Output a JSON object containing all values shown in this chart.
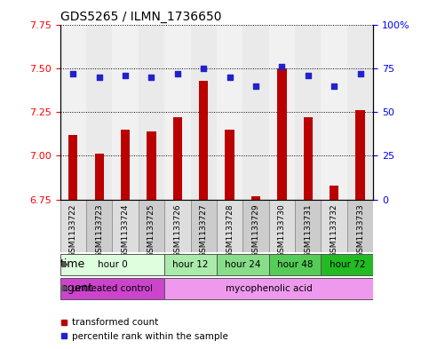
{
  "title": "GDS5265 / ILMN_1736650",
  "samples": [
    "GSM1133722",
    "GSM1133723",
    "GSM1133724",
    "GSM1133725",
    "GSM1133726",
    "GSM1133727",
    "GSM1133728",
    "GSM1133729",
    "GSM1133730",
    "GSM1133731",
    "GSM1133732",
    "GSM1133733"
  ],
  "transformed_count": [
    7.12,
    7.01,
    7.15,
    7.14,
    7.22,
    7.43,
    7.15,
    6.77,
    7.5,
    7.22,
    6.83,
    7.26
  ],
  "percentile_rank": [
    72,
    70,
    71,
    70,
    72,
    75,
    70,
    65,
    76,
    71,
    65,
    72
  ],
  "ylim_left": [
    6.75,
    7.75
  ],
  "ylim_right": [
    0,
    100
  ],
  "yticks_left": [
    6.75,
    7.0,
    7.25,
    7.5,
    7.75
  ],
  "yticks_right": [
    0,
    25,
    50,
    75,
    100
  ],
  "bar_color": "#bb0000",
  "dot_color": "#2222cc",
  "time_groups": [
    {
      "label": "hour 0",
      "start": 0,
      "end": 4,
      "color": "#ddffdd"
    },
    {
      "label": "hour 12",
      "start": 4,
      "end": 6,
      "color": "#aaeaaa"
    },
    {
      "label": "hour 24",
      "start": 6,
      "end": 8,
      "color": "#88dd88"
    },
    {
      "label": "hour 48",
      "start": 8,
      "end": 10,
      "color": "#55cc55"
    },
    {
      "label": "hour 72",
      "start": 10,
      "end": 12,
      "color": "#22bb22"
    }
  ],
  "agent_groups": [
    {
      "label": "untreated control",
      "start": 0,
      "end": 4,
      "color": "#cc44cc"
    },
    {
      "label": "mycophenolic acid",
      "start": 4,
      "end": 12,
      "color": "#ee99ee"
    }
  ],
  "bar_baseline": 6.75,
  "col_bg_even": "#dddddd",
  "col_bg_odd": "#cccccc"
}
